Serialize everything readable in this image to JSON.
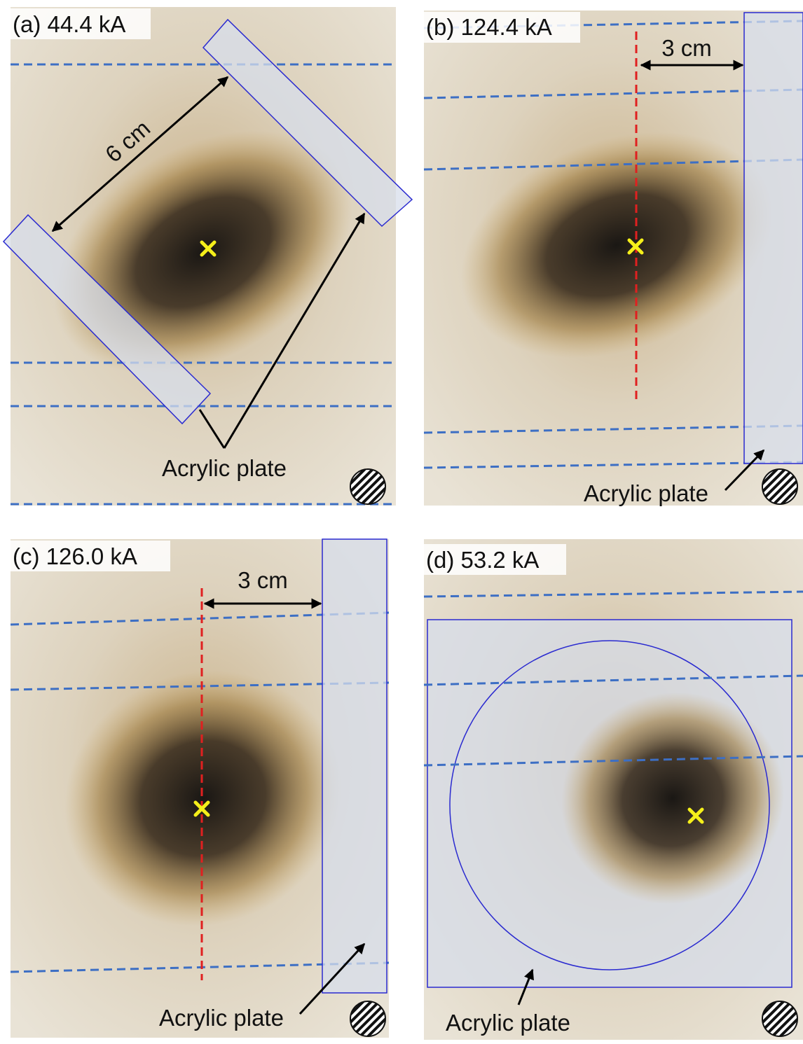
{
  "panels": [
    {
      "label": "(a) 44.4 kA",
      "dimension": "6 cm",
      "plate_label": "Acrylic plate"
    },
    {
      "label": "(b) 124.4 kA",
      "dimension": "3 cm",
      "plate_label": "Acrylic plate"
    },
    {
      "label": "(c) 126.0 kA",
      "dimension": "3 cm",
      "plate_label": "Acrylic plate"
    },
    {
      "label": "(d) 53.2 kA",
      "plate_label": "Acrylic plate"
    }
  ]
}
